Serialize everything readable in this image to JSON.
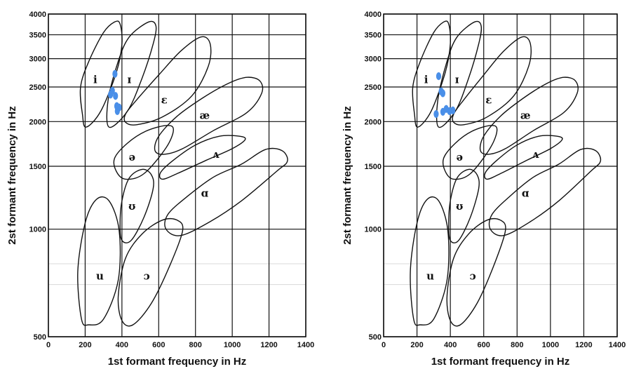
{
  "chart_data": [
    {
      "type": "scatter",
      "xlabel": "1st formant frequency in Hz",
      "ylabel": "2st formant frequency in Hz",
      "xlim": [
        0,
        1400
      ],
      "ylim": [
        500,
        4000
      ],
      "yscale": "log",
      "grid": true,
      "x_ticks": [
        "0",
        "200",
        "400",
        "600",
        "800",
        "1000",
        "1200",
        "1400"
      ],
      "y_ticks": [
        "500",
        "1000",
        "1500",
        "2000",
        "2500",
        "3000",
        "3500",
        "4000"
      ],
      "vowel_labels": [
        {
          "text": "i",
          "f1": 255,
          "f2": 2620
        },
        {
          "text": "ɪ",
          "f1": 440,
          "f2": 2620
        },
        {
          "text": "ɛ",
          "f1": 630,
          "f2": 2300
        },
        {
          "text": "æ",
          "f1": 850,
          "f2": 2080
        },
        {
          "text": "ə",
          "f1": 455,
          "f2": 1590
        },
        {
          "text": "ʌ",
          "f1": 910,
          "f2": 1620
        },
        {
          "text": "ʊ",
          "f1": 455,
          "f2": 1160
        },
        {
          "text": "ɑ",
          "f1": 850,
          "f2": 1260
        },
        {
          "text": "u",
          "f1": 280,
          "f2": 740
        },
        {
          "text": "ɔ",
          "f1": 535,
          "f2": 740
        }
      ],
      "series": [
        {
          "points": [
            [
              362,
              2720
            ],
            [
              348,
              2440
            ],
            [
              338,
              2380
            ],
            [
              365,
              2360
            ],
            [
              372,
              2210
            ],
            [
              385,
              2190
            ],
            [
              375,
              2140
            ]
          ]
        }
      ]
    },
    {
      "type": "scatter",
      "xlabel": "1st formant frequency in Hz",
      "ylabel": "2st formant frequency in Hz",
      "xlim": [
        0,
        1400
      ],
      "ylim": [
        500,
        4000
      ],
      "yscale": "log",
      "grid": true,
      "x_ticks": [
        "0",
        "200",
        "400",
        "600",
        "800",
        "1000",
        "1200",
        "1400"
      ],
      "y_ticks": [
        "500",
        "1000",
        "1500",
        "2000",
        "2500",
        "3000",
        "3500",
        "4000"
      ],
      "vowel_labels": [
        {
          "text": "i",
          "f1": 255,
          "f2": 2620
        },
        {
          "text": "ɪ",
          "f1": 440,
          "f2": 2620
        },
        {
          "text": "ɛ",
          "f1": 630,
          "f2": 2300
        },
        {
          "text": "æ",
          "f1": 850,
          "f2": 2080
        },
        {
          "text": "ə",
          "f1": 455,
          "f2": 1590
        },
        {
          "text": "ʌ",
          "f1": 910,
          "f2": 1620
        },
        {
          "text": "ʊ",
          "f1": 455,
          "f2": 1160
        },
        {
          "text": "ɑ",
          "f1": 850,
          "f2": 1260
        },
        {
          "text": "u",
          "f1": 280,
          "f2": 740
        },
        {
          "text": "ɔ",
          "f1": 535,
          "f2": 740
        }
      ],
      "series": [
        {
          "points": [
            [
              330,
              2680
            ],
            [
              345,
              2430
            ],
            [
              355,
              2400
            ],
            [
              315,
              2100
            ],
            [
              355,
              2130
            ],
            [
              375,
              2170
            ],
            [
              395,
              2140
            ],
            [
              415,
              2150
            ]
          ]
        }
      ]
    }
  ]
}
